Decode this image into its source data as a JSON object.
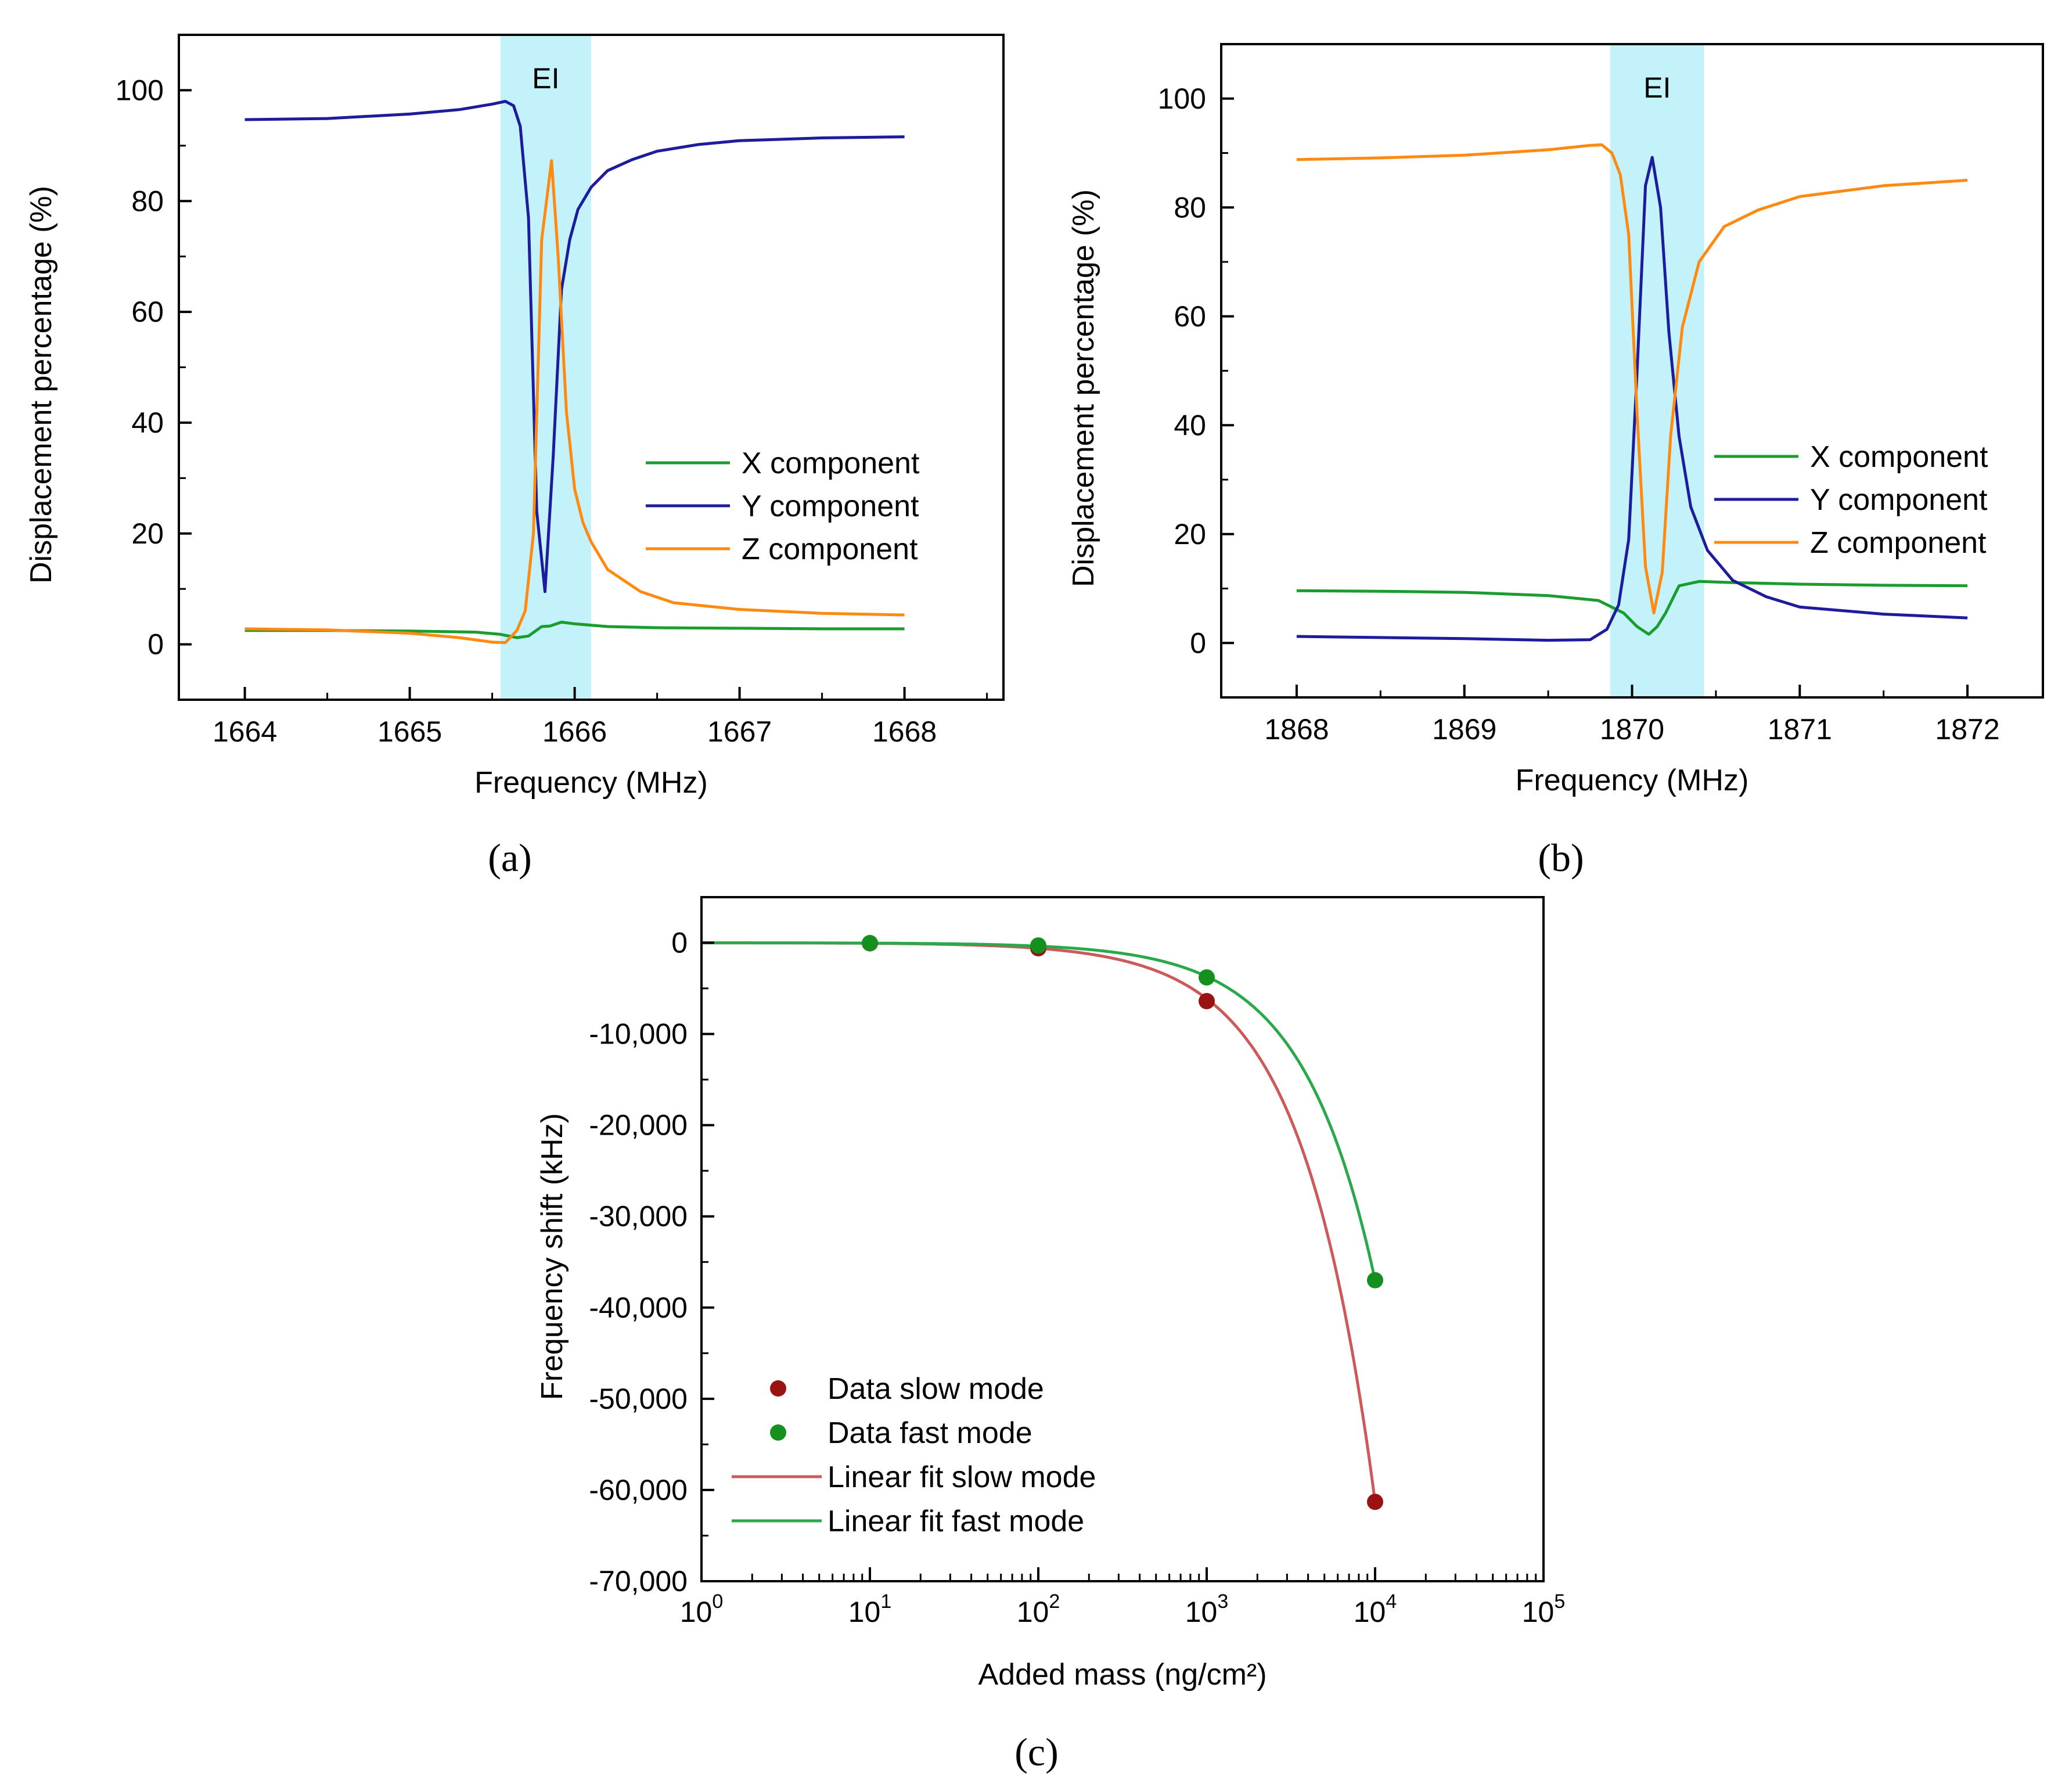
{
  "colors": {
    "x": "#1a9c2e",
    "y": "#1c1c9c",
    "z": "#ff8a12",
    "band": "#c4f2fb",
    "slow": "#9a1212",
    "fast": "#15901f",
    "slow_fit": "#cd5a5a",
    "fast_fit": "#2aa84a"
  },
  "chart_data": [
    {
      "id": "a",
      "type": "line",
      "panel_label": "(a)",
      "xlabel": "Frequency (MHz)",
      "ylabel": "Displacement percentage (%)",
      "xlim": [
        1663.6,
        1668.6
      ],
      "ylim": [
        -10,
        110
      ],
      "xticks": [
        1664,
        1665,
        1666,
        1667,
        1668
      ],
      "xtick_labels": [
        "1664",
        "1665",
        "1666",
        "1667",
        "1668"
      ],
      "yticks": [
        0,
        20,
        40,
        60,
        80,
        100
      ],
      "ytick_labels": [
        "0",
        "20",
        "40",
        "60",
        "80",
        "100"
      ],
      "band": {
        "x0": 1665.55,
        "x1": 1666.1,
        "label": "EI"
      },
      "legend": [
        "X component",
        "Y component",
        "Z component"
      ],
      "series": [
        {
          "name": "X component",
          "key": "x",
          "x": [
            1664,
            1664.5,
            1665,
            1665.4,
            1665.55,
            1665.65,
            1665.72,
            1665.8,
            1665.85,
            1665.92,
            1666.0,
            1666.2,
            1666.5,
            1667,
            1667.5,
            1668
          ],
          "y": [
            2.5,
            2.5,
            2.4,
            2.2,
            1.8,
            1.2,
            1.5,
            3.2,
            3.3,
            4.0,
            3.7,
            3.2,
            3.0,
            2.9,
            2.8,
            2.8
          ]
        },
        {
          "name": "Y component",
          "key": "y",
          "x": [
            1664,
            1664.5,
            1665,
            1665.3,
            1665.5,
            1665.58,
            1665.63,
            1665.67,
            1665.72,
            1665.77,
            1665.82,
            1665.87,
            1665.92,
            1665.97,
            1666.02,
            1666.1,
            1666.2,
            1666.35,
            1666.5,
            1666.75,
            1667,
            1667.5,
            1668
          ],
          "y": [
            94.7,
            94.9,
            95.7,
            96.5,
            97.5,
            98.0,
            97.2,
            93.5,
            77,
            24,
            9.5,
            34,
            64,
            73,
            78.5,
            82.5,
            85.5,
            87.5,
            89,
            90.2,
            90.9,
            91.4,
            91.6
          ]
        },
        {
          "name": "Z component",
          "key": "z",
          "x": [
            1664,
            1664.5,
            1665,
            1665.3,
            1665.5,
            1665.58,
            1665.65,
            1665.7,
            1665.75,
            1665.8,
            1665.86,
            1665.9,
            1665.95,
            1666.0,
            1666.05,
            1666.1,
            1666.2,
            1666.4,
            1666.6,
            1667,
            1667.5,
            1668
          ],
          "y": [
            2.8,
            2.6,
            2.0,
            1.2,
            0.4,
            0.3,
            2.5,
            6.0,
            20,
            73,
            87.3,
            70,
            42,
            28,
            22,
            18.5,
            13.5,
            9.5,
            7.5,
            6.3,
            5.6,
            5.3
          ]
        }
      ]
    },
    {
      "id": "b",
      "type": "line",
      "panel_label": "(b)",
      "xlabel": "Frequency (MHz)",
      "ylabel": "Displacement percentage (%)",
      "xlim": [
        1867.55,
        1872.45
      ],
      "ylim": [
        -10,
        110
      ],
      "xticks": [
        1868,
        1869,
        1870,
        1871,
        1872
      ],
      "xtick_labels": [
        "1868",
        "1869",
        "1870",
        "1871",
        "1872"
      ],
      "yticks": [
        0,
        20,
        40,
        60,
        80,
        100
      ],
      "ytick_labels": [
        "0",
        "20",
        "40",
        "60",
        "80",
        "100"
      ],
      "band": {
        "x0": 1869.87,
        "x1": 1870.43,
        "label": "EI"
      },
      "legend": [
        "X component",
        "Y component",
        "Z component"
      ],
      "series": [
        {
          "name": "X component",
          "key": "x",
          "x": [
            1868,
            1868.5,
            1869,
            1869.5,
            1869.8,
            1869.95,
            1870.03,
            1870.1,
            1870.15,
            1870.2,
            1870.28,
            1870.4,
            1870.6,
            1871,
            1871.5,
            1872
          ],
          "y": [
            9.6,
            9.5,
            9.3,
            8.7,
            7.8,
            5.5,
            3.0,
            1.6,
            3.0,
            5.5,
            10.5,
            11.3,
            11.1,
            10.8,
            10.6,
            10.5
          ]
        },
        {
          "name": "Y component",
          "key": "y",
          "x": [
            1868,
            1868.5,
            1869,
            1869.5,
            1869.75,
            1869.85,
            1869.92,
            1869.98,
            1870.03,
            1870.08,
            1870.12,
            1870.17,
            1870.22,
            1870.28,
            1870.35,
            1870.45,
            1870.6,
            1870.8,
            1871,
            1871.5,
            1872
          ],
          "y": [
            1.2,
            1.0,
            0.8,
            0.5,
            0.6,
            2.5,
            7,
            19,
            50,
            84,
            89.2,
            80,
            57,
            38,
            25,
            17,
            11.5,
            8.5,
            6.6,
            5.3,
            4.6
          ]
        },
        {
          "name": "Z component",
          "key": "z",
          "x": [
            1868,
            1868.5,
            1869,
            1869.5,
            1869.75,
            1869.82,
            1869.88,
            1869.93,
            1869.98,
            1870.03,
            1870.08,
            1870.13,
            1870.18,
            1870.23,
            1870.3,
            1870.4,
            1870.55,
            1870.75,
            1871,
            1871.5,
            1872
          ],
          "y": [
            88.8,
            89.1,
            89.6,
            90.6,
            91.4,
            91.5,
            90,
            86,
            75,
            42,
            14,
            5.5,
            13,
            38,
            58,
            70,
            76.5,
            79.5,
            82,
            84,
            85
          ]
        }
      ]
    },
    {
      "id": "c",
      "type": "scatter",
      "panel_label": "(c)",
      "xlabel": "Added mass (ng/cm²)",
      "ylabel": "Frequency shift (kHz)",
      "xscale": "log",
      "xlim": [
        1,
        100000
      ],
      "ylim": [
        -70000,
        5000
      ],
      "xticks": [
        1,
        10,
        100,
        1000,
        10000,
        100000
      ],
      "xtick_labels": [
        "10",
        "10",
        "10",
        "10",
        "10",
        "10"
      ],
      "xtick_exponents": [
        "0",
        "1",
        "2",
        "3",
        "4",
        "5"
      ],
      "yticks": [
        0,
        -10000,
        -20000,
        -30000,
        -40000,
        -50000,
        -60000,
        -70000
      ],
      "ytick_labels": [
        "0",
        "-10,000",
        "-20,000",
        "-30,000",
        "-40,000",
        "-50,000",
        "-60,000",
        "-70,000"
      ],
      "legend": [
        "Data slow mode",
        "Data fast mode",
        "Linear fit slow mode",
        "Linear fit fast mode"
      ],
      "series": [
        {
          "name": "Data slow mode",
          "kind": "points",
          "key": "slow",
          "x": [
            10,
            100,
            1000,
            10000
          ],
          "y": [
            -60,
            -600,
            -6400,
            -61300
          ]
        },
        {
          "name": "Data fast mode",
          "kind": "points",
          "key": "fast",
          "x": [
            10,
            100,
            1000,
            10000
          ],
          "y": [
            -30,
            -300,
            -3800,
            -37000
          ]
        },
        {
          "name": "Linear fit slow mode",
          "kind": "fit",
          "key": "slow_fit",
          "slope": -6.13,
          "x_range": [
            1,
            10000
          ]
        },
        {
          "name": "Linear fit fast mode",
          "kind": "fit",
          "key": "fast_fit",
          "slope": -3.7,
          "x_range": [
            1,
            10000
          ]
        }
      ]
    }
  ]
}
